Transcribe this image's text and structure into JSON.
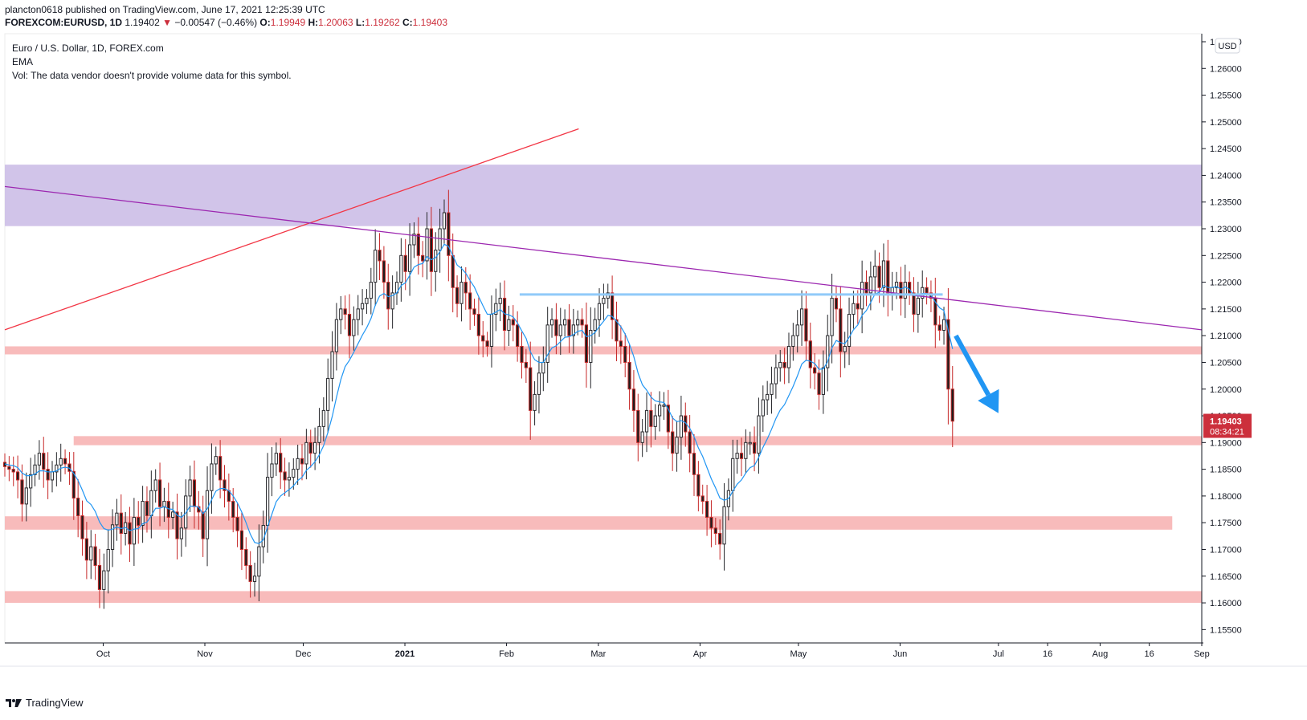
{
  "header": {
    "line1": "plancton0618 published on TradingView.com, June 17, 2021 12:25:39 UTC",
    "symbol": "FOREXCOM:EURUSD, 1D",
    "last": "1.19402",
    "change_arrow": "▼",
    "change": "−0.00547 (−0.46%)",
    "o_label": "O:",
    "o": "1.19949",
    "h_label": "H:",
    "h": "1.20063",
    "l_label": "L:",
    "l": "1.19262",
    "c_label": "C:",
    "c": "1.19403"
  },
  "legend": {
    "title": "Euro / U.S. Dollar, 1D, FOREX.com",
    "ema": "EMA",
    "vol": "Vol: The data vendor doesn't provide volume data for this symbol."
  },
  "footer": {
    "brand": "TradingView"
  },
  "chart_data": {
    "type": "candlestick",
    "currency_label": "USD",
    "ylim": [
      1.1525,
      1.2665
    ],
    "y_ticks": [
      "1.15500",
      "1.16000",
      "1.16500",
      "1.17000",
      "1.17500",
      "1.18000",
      "1.18500",
      "1.19000",
      "1.19500",
      "1.20000",
      "1.20500",
      "1.21000",
      "1.21500",
      "1.22000",
      "1.22500",
      "1.23000",
      "1.23500",
      "1.24000",
      "1.24500",
      "1.25000",
      "1.25500",
      "1.26000",
      "1.26500"
    ],
    "x_range": [
      "2020-09-01",
      "2021-09-01"
    ],
    "x_ticks": [
      {
        "label": "Oct",
        "date": "2020-10-01"
      },
      {
        "label": "Nov",
        "date": "2020-11-01"
      },
      {
        "label": "Dec",
        "date": "2020-12-01"
      },
      {
        "label": "2021",
        "date": "2021-01-01"
      },
      {
        "label": "Feb",
        "date": "2021-02-01"
      },
      {
        "label": "Mar",
        "date": "2021-03-01"
      },
      {
        "label": "Apr",
        "date": "2021-04-01"
      },
      {
        "label": "May",
        "date": "2021-05-01"
      },
      {
        "label": "Jun",
        "date": "2021-06-01"
      },
      {
        "label": "Jul",
        "date": "2021-07-01"
      },
      {
        "label": "16",
        "date": "2021-07-16"
      },
      {
        "label": "Aug",
        "date": "2021-08-01"
      },
      {
        "label": "16",
        "date": "2021-08-16"
      },
      {
        "label": "Sep",
        "date": "2021-09-01"
      }
    ],
    "price_label": {
      "value": "1.19403",
      "countdown": "08:34:21"
    },
    "close_series": [
      1.1855,
      1.185,
      1.1845,
      1.183,
      1.1785,
      1.1815,
      1.184,
      1.1858,
      1.188,
      1.185,
      1.183,
      1.1845,
      1.1858,
      1.187,
      1.186,
      1.1846,
      1.1796,
      1.1763,
      1.172,
      1.168,
      1.1705,
      1.167,
      1.1625,
      1.166,
      1.17,
      1.1746,
      1.1768,
      1.173,
      1.175,
      1.171,
      1.176,
      1.1745,
      1.179,
      1.1763,
      1.181,
      1.183,
      1.178,
      1.179,
      1.176,
      1.177,
      1.172,
      1.174,
      1.18,
      1.183,
      1.178,
      1.177,
      1.172,
      1.181,
      1.186,
      1.1874,
      1.183,
      1.181,
      1.179,
      1.176,
      1.1735,
      1.17,
      1.167,
      1.164,
      1.165,
      1.1705,
      1.1745,
      1.1835,
      1.186,
      1.188,
      1.1845,
      1.183,
      1.1835,
      1.185,
      1.187,
      1.186,
      1.19,
      1.188,
      1.19,
      1.193,
      1.196,
      1.202,
      1.207,
      1.213,
      1.215,
      1.214,
      1.21,
      1.213,
      1.215,
      1.216,
      1.217,
      1.22,
      1.226,
      1.224,
      1.22,
      1.215,
      1.218,
      1.22,
      1.225,
      1.222,
      1.227,
      1.229,
      1.225,
      1.224,
      1.23,
      1.222,
      1.226,
      1.23,
      1.233,
      1.225,
      1.219,
      1.216,
      1.22,
      1.218,
      1.215,
      1.214,
      1.21,
      1.209,
      1.208,
      1.214,
      1.216,
      1.217,
      1.211,
      1.213,
      1.212,
      1.208,
      1.205,
      1.204,
      1.196,
      1.199,
      1.203,
      1.205,
      1.212,
      1.213,
      1.21,
      1.212,
      1.213,
      1.21,
      1.212,
      1.213,
      1.212,
      1.205,
      1.211,
      1.213,
      1.216,
      1.217,
      1.218,
      1.213,
      1.209,
      1.208,
      1.205,
      1.2,
      1.196,
      1.19,
      1.192,
      1.196,
      1.193,
      1.195,
      1.197,
      1.197,
      1.192,
      1.188,
      1.191,
      1.195,
      1.192,
      1.188,
      1.184,
      1.18,
      1.179,
      1.176,
      1.174,
      1.173,
      1.171,
      1.178,
      1.181,
      1.187,
      1.188,
      1.187,
      1.19,
      1.19,
      1.188,
      1.195,
      1.198,
      1.199,
      1.201,
      1.204,
      1.205,
      1.204,
      1.208,
      1.21,
      1.212,
      1.215,
      1.209,
      1.204,
      1.203,
      1.199,
      1.204,
      1.21,
      1.217,
      1.215,
      1.207,
      1.208,
      1.214,
      1.216,
      1.215,
      1.22,
      1.218,
      1.221,
      1.223,
      1.219,
      1.224,
      1.218,
      1.219,
      1.22,
      1.217,
      1.22,
      1.218,
      1.214,
      1.217,
      1.219,
      1.218,
      1.217,
      1.212,
      1.211,
      1.213,
      1.2,
      1.194
    ],
    "ema_series": [
      1.186,
      1.1858,
      1.1857,
      1.1853,
      1.1843,
      1.1838,
      1.1838,
      1.1841,
      1.1847,
      1.1847,
      1.1845,
      1.1845,
      1.1847,
      1.1852,
      1.1854,
      1.1852,
      1.1842,
      1.1829,
      1.1811,
      1.1791,
      1.1784,
      1.1771,
      1.1751,
      1.1739,
      1.1736,
      1.1738,
      1.1742,
      1.1739,
      1.1741,
      1.1735,
      1.1738,
      1.1739,
      1.1748,
      1.1751,
      1.1763,
      1.1777,
      1.1777,
      1.178,
      1.1776,
      1.1775,
      1.1764,
      1.176,
      1.1768,
      1.1781,
      1.1781,
      1.1779,
      1.1767,
      1.1776,
      1.1793,
      1.1809,
      1.1814,
      1.1814,
      1.181,
      1.18,
      1.1787,
      1.177,
      1.175,
      1.1728,
      1.1713,
      1.1711,
      1.1718,
      1.1742,
      1.1766,
      1.1789,
      1.18,
      1.1806,
      1.1812,
      1.1819,
      1.1829,
      1.1835,
      1.1848,
      1.1855,
      1.1864,
      1.1877,
      1.1894,
      1.1919,
      1.1949,
      1.1985,
      1.2018,
      1.2042,
      1.2054,
      1.2069,
      1.2085,
      1.2101,
      1.2115,
      1.2132,
      1.2157,
      1.2174,
      1.2179,
      1.2173,
      1.2175,
      1.218,
      1.2194,
      1.2199,
      1.2213,
      1.2228,
      1.2233,
      1.2235,
      1.2248,
      1.2242,
      1.2246,
      1.2257,
      1.2271,
      1.2267,
      1.225,
      1.2232,
      1.2226,
      1.2217,
      1.2203,
      1.2191,
      1.2173,
      1.2156,
      1.214,
      1.214,
      1.2144,
      1.2149,
      1.2141,
      1.2139,
      1.2135,
      1.2124,
      1.2109,
      1.2095,
      1.207,
      1.2055,
      1.205,
      1.205,
      1.2064,
      1.2077,
      1.2081,
      1.2089,
      1.2097,
      1.2098,
      1.2102,
      1.2108,
      1.211,
      1.2098,
      1.21,
      1.2106,
      1.2117,
      1.2127,
      1.2138,
      1.2136,
      1.2127,
      1.2117,
      1.2103,
      1.2084,
      1.2061,
      1.203,
      1.2008,
      1.1998,
      1.1985,
      1.1978,
      1.1976,
      1.1975,
      1.1963,
      1.1946,
      1.1939,
      1.1941,
      1.1937,
      1.1927,
      1.1911,
      1.189,
      1.1874,
      1.1853,
      1.1832,
      1.1815,
      1.1796,
      1.1792,
      1.1795,
      1.1809,
      1.1822,
      1.183,
      1.1843,
      1.1853,
      1.1857,
      1.1872,
      1.1891,
      1.1907,
      1.1925,
      1.1945,
      1.1961,
      1.1971,
      1.1988,
      1.2005,
      1.2025,
      1.2047,
      1.2054,
      1.2052,
      1.2048,
      1.2037,
      1.2038,
      1.2051,
      1.2077,
      1.2091,
      1.2087,
      1.2085,
      1.2097,
      1.2111,
      1.212,
      1.2138,
      1.2147,
      1.2162,
      1.2178,
      1.2181,
      1.2194,
      1.219,
      1.219,
      1.2192,
      1.2187,
      1.2191,
      1.2187,
      1.2175,
      1.2174,
      1.2179,
      1.2179,
      1.2176,
      1.2163,
      1.2152,
      1.2147,
      1.211,
      1.2075
    ],
    "candle_dates": {
      "start": "2020-09-01",
      "end": "2021-06-17"
    },
    "zones": [
      {
        "color": "#d1c4e9",
        "y1": 1.2305,
        "y2": 1.242,
        "x1": "2020-09-01",
        "x2": "2021-09-01"
      },
      {
        "color": "#f8bbbb",
        "y1": 1.2065,
        "y2": 1.208,
        "x1": "2020-09-01",
        "x2": "2021-09-01"
      },
      {
        "color": "#f8bbbb",
        "y1": 1.1895,
        "y2": 1.1912,
        "x1": "2020-09-22",
        "x2": "2021-09-01"
      },
      {
        "color": "#f8bbbb",
        "y1": 1.1737,
        "y2": 1.1762,
        "x1": "2020-09-01",
        "x2": "2021-08-23"
      },
      {
        "color": "#f8bbbb",
        "y1": 1.16,
        "y2": 1.1622,
        "x1": "2020-09-01",
        "x2": "2021-09-01"
      }
    ],
    "lines": [
      {
        "name": "red-trendline",
        "color": "#f23645",
        "from": [
          "2020-09-01",
          1.2111
        ],
        "to": [
          "2021-02-23",
          1.2487
        ]
      },
      {
        "name": "purple-trendline",
        "color": "#9c27b0",
        "from": [
          "2020-09-01",
          1.2379
        ],
        "to": [
          "2021-09-01",
          1.2111
        ]
      },
      {
        "name": "blue-resistance-line",
        "color": "#90caf9",
        "from": [
          "2021-02-05",
          1.2177
        ],
        "to": [
          "2021-06-14",
          1.2177
        ]
      }
    ],
    "arrow": {
      "color": "#2196f3",
      "from": [
        "2021-06-18",
        1.21
      ],
      "to": [
        "2021-07-01",
        1.1955
      ]
    },
    "up_color": "#26272b",
    "down_color": "#1e1e1e",
    "ema_color": "#2196f3",
    "price_label_color": "#cc2f3c"
  }
}
